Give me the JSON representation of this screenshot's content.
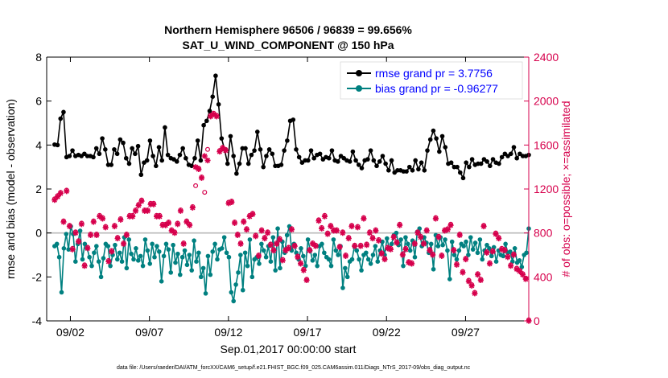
{
  "chart_data": {
    "type": "line",
    "title": "Northern Hemisphere 96506 / 96839 = 99.656%",
    "subtitle": "SAT_U_WIND_COMPONENT @ 150 hPa",
    "xlabel": "Sep.01,2017 00:00:00 start",
    "ylabel": "rmse and bias (model - observation)",
    "y2label": "# of obs: o=possible; ×=assimilated",
    "footer": "data file: /Users/raeder/DAI/ATM_forcXX/CAM6_setup/f.e21.FHIST_BGC.f09_025.CAM6assim.011/Diags_NTrS_2017-09/obs_diag_output.nc",
    "xlim": [
      0.5,
      31
    ],
    "ylim": [
      -4,
      8
    ],
    "y2lim": [
      0,
      2400
    ],
    "xticks": [
      {
        "v": 2,
        "label": "09/02"
      },
      {
        "v": 7,
        "label": "09/07"
      },
      {
        "v": 12,
        "label": "09/12"
      },
      {
        "v": 17,
        "label": "09/17"
      },
      {
        "v": 22,
        "label": "09/22"
      },
      {
        "v": 27,
        "label": "09/27"
      }
    ],
    "yticks": [
      -4,
      -2,
      0,
      2,
      4,
      6,
      8
    ],
    "y2ticks": [
      0,
      400,
      800,
      1200,
      1600,
      2000,
      2400
    ],
    "series": [
      {
        "name": "rmse grand pr = 3.7756",
        "color": "#000000",
        "axis": "left",
        "values": [
          4.02,
          4.0,
          5.2,
          5.5,
          3.45,
          3.5,
          3.75,
          3.5,
          3.55,
          3.5,
          3.6,
          3.5,
          3.5,
          3.45,
          3.85,
          3.6,
          4.3,
          3.8,
          3.1,
          3.1,
          3.8,
          3.6,
          4.25,
          4.1,
          3.4,
          3.15,
          3.85,
          3.6,
          3.95,
          2.65,
          3.2,
          3.3,
          4.2,
          3.5,
          3.05,
          3.9,
          3.3,
          4.8,
          3.55,
          3.4,
          3.35,
          3.25,
          3.55,
          3.85,
          3.4,
          3.1,
          3.05,
          3.4,
          4.2,
          3.3,
          4.9,
          5.1,
          5.55,
          6.2,
          7.15,
          5.85,
          4.3,
          3.8,
          3.15,
          4.4,
          3.5,
          2.7,
          3.15,
          3.85,
          3.85,
          3.15,
          3.55,
          3.75,
          4.6,
          3.8,
          3.0,
          3.5,
          3.8,
          3.6,
          3.05,
          3.05,
          3.1,
          3.75,
          4.2,
          5.1,
          5.15,
          3.8,
          3.45,
          3.2,
          3.3,
          3.3,
          3.75,
          3.4,
          3.55,
          3.6,
          3.35,
          3.45,
          3.4,
          3.75,
          3.3,
          3.25,
          3.5,
          3.4,
          3.3,
          3.25,
          3.7,
          3.3,
          3.1,
          2.95,
          3.3,
          3.35,
          3.75,
          3.3,
          3.05,
          3.25,
          3.5,
          3.15,
          2.85,
          3.3,
          2.75,
          2.85,
          2.85,
          2.8,
          2.8,
          3.0,
          2.85,
          3.3,
          2.9,
          3.2,
          2.85,
          3.75,
          4.25,
          4.65,
          4.3,
          3.7,
          4.4,
          3.9,
          3.15,
          3.2,
          3.0,
          3.0,
          2.75,
          2.5,
          3.2,
          3.0,
          3.35,
          3.1,
          3.15,
          3.15,
          3.35,
          3.25,
          3.05,
          3.35,
          3.2,
          3.15,
          3.45,
          3.6,
          3.5,
          3.6,
          3.9,
          3.4,
          3.6,
          3.5,
          3.5,
          3.55
        ]
      },
      {
        "name": "bias grand pr = -0.96277",
        "color": "#008080",
        "axis": "left",
        "values": [
          -0.6,
          -0.5,
          -1.1,
          -2.7,
          -0.7,
          -0.05,
          -0.75,
          0.3,
          -0.05,
          -1.3,
          -0.5,
          0.1,
          -1.2,
          -0.5,
          -0.7,
          -1.1,
          -1.5,
          -0.9,
          -0.6,
          -1.3,
          -2.0,
          -1.15,
          -0.5,
          -0.6,
          -1.5,
          -1.0,
          -0.55,
          -1.2,
          -0.9,
          -1.3,
          -0.2,
          -1.6,
          -0.3,
          -0.95,
          -1.2,
          -0.7,
          -1.25,
          -1.05,
          -1.5,
          -0.3,
          -0.8,
          -1.4,
          -0.5,
          -1.1,
          -0.6,
          -0.85,
          -2.2,
          -1.05,
          -0.5,
          -0.75,
          -1.8,
          -0.55,
          -1.35,
          -0.95,
          -1.9,
          -1.1,
          -0.8,
          -1.45,
          -1.0,
          -1.7,
          -0.35,
          -1.3,
          -0.9,
          -2.0,
          -1.6,
          -2.75,
          -1.05,
          -1.9,
          -0.85,
          -0.5,
          -1.2,
          -0.75,
          -0.7,
          -0.2,
          -0.9,
          -1.1,
          -2.7,
          -3.1,
          -2.35,
          -1.8,
          -1.0,
          -2.6,
          -0.9,
          -1.5,
          -0.3,
          -2.0,
          -1.2,
          -1.1,
          -1.4,
          -0.5,
          -0.8,
          -1.1,
          -0.6,
          -1.3,
          -0.2,
          -1.7,
          0.2,
          -1.6,
          -0.4,
          -0.9,
          -0.1,
          0.3,
          -0.8,
          -0.5,
          -0.9,
          -1.2,
          -0.7,
          -1.05,
          -1.5,
          -0.3,
          -0.8,
          -1.25,
          -1.0,
          -1.5,
          -0.6,
          -0.5,
          -0.9,
          -1.1,
          -1.2,
          -1.5,
          -0.3,
          -0.8,
          -1.0,
          -0.6,
          -2.5,
          -1.6,
          -2.0,
          -1.3,
          -1.2,
          -0.6,
          -0.8,
          -1.2,
          -1.7,
          -1.0,
          -0.9,
          -1.2,
          -1.4,
          -1.0,
          -0.6,
          -1.3,
          -0.8,
          -0.4,
          -1.0,
          -0.25,
          -0.7,
          -0.5,
          -0.1,
          0.0,
          -0.55,
          -0.3,
          -1.5,
          -0.2,
          -0.5,
          -0.8,
          -0.35,
          -1.1,
          0.05,
          0.2,
          -0.6,
          -0.2,
          -0.45,
          -0.9,
          -0.5,
          -1.65,
          -0.1,
          -0.6,
          -0.2,
          -0.55,
          -0.3,
          -0.8,
          -2.1,
          -0.4,
          -1.0,
          -1.2,
          -0.8,
          -0.5,
          -0.6,
          -0.4,
          -1.0,
          -0.2,
          -0.75,
          -0.45,
          -0.9,
          -0.3,
          -1.2,
          -0.8,
          -0.55,
          -0.7,
          -1.05,
          -0.65,
          -1.3,
          -0.8,
          -1.0,
          -1.05,
          -0.5,
          -0.9,
          -0.85,
          -1.3,
          -0.7,
          -1.35,
          -1.25,
          -1.55,
          -1.0,
          -0.9,
          0.2
        ]
      },
      {
        "name": "obs assimilated",
        "color": "#d6004c",
        "axis": "right",
        "marker": "*",
        "values": [
          1100,
          1130,
          1160,
          900,
          1180,
          860,
          650,
          800,
          720,
          880,
          500,
          660,
          780,
          900,
          780,
          950,
          930,
          850,
          540,
          630,
          860,
          750,
          920,
          700,
          780,
          950,
          950,
          1000,
          1050,
          1090,
          1000,
          1000,
          1060,
          1060,
          950,
          950,
          870,
          870,
          890,
          820,
          800,
          880,
          1000,
          700,
          900,
          870,
          1030,
          1400,
          1380,
          1300,
          1500,
          1460,
          1860,
          1880,
          1860,
          1540,
          1570,
          1550,
          1070,
          1080,
          890,
          780,
          700,
          900,
          830,
          950,
          970,
          770,
          590,
          820,
          750,
          800,
          690,
          640,
          700,
          740,
          550,
          640,
          660,
          830,
          680,
          580,
          520,
          460,
          370,
          640,
          700,
          680,
          910,
          840,
          950,
          790,
          860,
          820,
          820,
          670,
          800,
          590,
          750,
          860,
          680,
          850,
          680,
          930,
          690,
          800,
          750,
          820,
          730,
          610,
          560,
          660,
          650,
          760,
          710,
          870,
          600,
          650,
          530,
          520,
          700,
          800,
          760,
          700,
          820,
          640,
          600,
          930,
          760,
          590,
          820,
          830,
          870,
          640,
          510,
          780,
          440,
          560,
          360,
          320,
          250,
          420,
          370,
          860,
          620,
          520,
          630,
          790,
          750,
          650,
          640,
          580,
          500,
          600,
          470,
          450,
          420,
          380,
          0
        ]
      },
      {
        "name": "obs possible",
        "color": "#d6004c",
        "axis": "right",
        "marker": "o",
        "values": [
          1110,
          1140,
          1170,
          910,
          1190,
          870,
          660,
          810,
          730,
          890,
          510,
          670,
          790,
          910,
          790,
          960,
          940,
          860,
          550,
          640,
          870,
          760,
          930,
          710,
          790,
          960,
          960,
          1010,
          1060,
          1100,
          1010,
          1010,
          1070,
          1070,
          960,
          960,
          880,
          880,
          900,
          830,
          810,
          890,
          1010,
          710,
          910,
          880,
          1040,
          1230,
          1390,
          1310,
          1170,
          1560,
          1870,
          1890,
          1870,
          1550,
          1580,
          1560,
          1080,
          1090,
          900,
          790,
          710,
          910,
          840,
          960,
          980,
          780,
          600,
          830,
          760,
          810,
          700,
          650,
          710,
          750,
          560,
          650,
          670,
          840,
          690,
          590,
          530,
          470,
          380,
          650,
          710,
          690,
          920,
          850,
          960,
          800,
          870,
          830,
          830,
          680,
          810,
          600,
          760,
          870,
          690,
          860,
          690,
          940,
          700,
          810,
          760,
          830,
          740,
          620,
          570,
          670,
          660,
          770,
          720,
          880,
          610,
          660,
          540,
          530,
          710,
          810,
          770,
          710,
          830,
          650,
          610,
          940,
          770,
          600,
          830,
          840,
          880,
          650,
          520,
          790,
          450,
          570,
          370,
          330,
          260,
          430,
          380,
          870,
          630,
          530,
          640,
          800,
          760,
          660,
          650,
          590,
          510,
          610,
          480,
          460,
          430,
          390,
          10
        ]
      }
    ]
  }
}
